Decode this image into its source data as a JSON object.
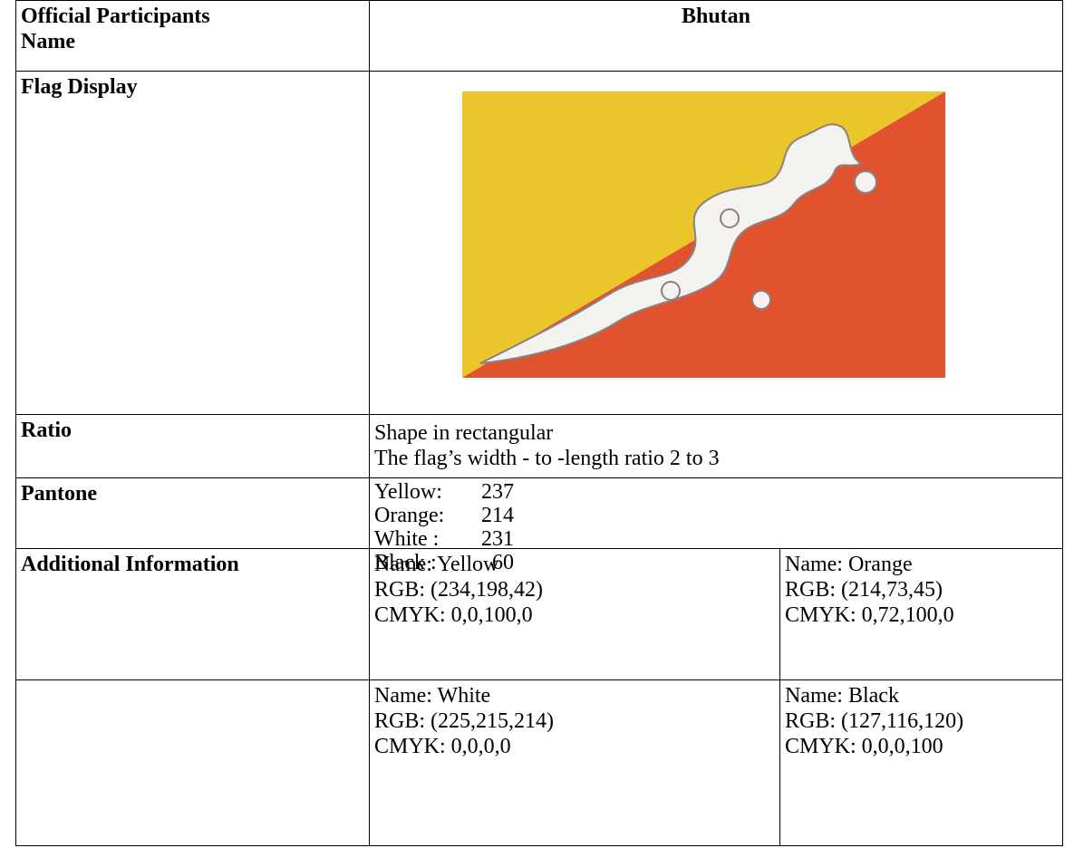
{
  "table": {
    "rows": [
      {
        "label": "Official Participants Name",
        "value": "Bhutan"
      },
      {
        "label": "Flag Display"
      },
      {
        "label": "Ratio",
        "lines": [
          "Shape in rectangular",
          "The flag’s width - to -length ratio 2 to 3"
        ]
      },
      {
        "label": "Pantone",
        "entries": [
          {
            "name": "Yellow:",
            "code": 237
          },
          {
            "name": "Orange:",
            "code": 214
          },
          {
            "name": "White :",
            "code": 231
          },
          {
            "name": "Black :",
            "code": 60
          }
        ]
      },
      {
        "label": "Additional Information",
        "colors": [
          {
            "name": "Name: Yellow",
            "rgb": "RGB: (234,198,42)",
            "cmyk": "CMYK: 0,0,100,0"
          },
          {
            "name": "Name: Orange",
            "rgb": "RGB: (214,73,45)",
            "cmyk": "CMYK: 0,72,100,0"
          }
        ]
      },
      {
        "colors": [
          {
            "name": "Name: White",
            "rgb": "RGB: (225,215,214)",
            "cmyk": "CMYK: 0,0,0,0"
          },
          {
            "name": "Name: Black",
            "rgb": "RGB: (127,116,120)",
            "cmyk": "CMYK: 0,0,0,100"
          }
        ]
      }
    ]
  }
}
